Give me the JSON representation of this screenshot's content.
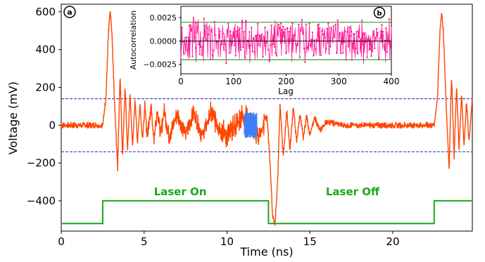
{
  "chart_data": [
    {
      "panel": "a",
      "type": "line",
      "xlabel": "Time (ns)",
      "ylabel": "Voltage (mV)",
      "xlim": [
        0,
        24.8
      ],
      "ylim": [
        -560,
        640
      ],
      "xticks": [
        0,
        5,
        10,
        15,
        20
      ],
      "yticks": [
        -400,
        -200,
        0,
        200,
        400,
        600
      ],
      "grid": false,
      "thresholds": [
        140,
        -140
      ],
      "annotations": [
        "Laser On",
        "Laser Off"
      ],
      "colors": {
        "signal": "#ff4500",
        "highlight": "#3f7ff5",
        "laser": "#1aa81a",
        "threshold": "#1f1fb4",
        "inset_series": "#ff1493",
        "inset_band": "#2ca02c"
      },
      "series": [
        {
          "kind": "signal",
          "x": [
            0,
            2.5,
            2.7,
            2.85,
            2.95,
            3.05,
            3.2,
            3.4,
            3.55,
            3.7,
            3.85,
            4.0,
            4.15,
            4.3,
            4.45,
            4.6,
            4.75,
            4.9,
            5.05,
            5.2,
            5.4,
            5.6,
            5.8,
            6.0,
            6.2,
            6.5,
            7.0,
            7.5,
            8.0,
            8.5,
            9.0,
            10.0,
            11.0,
            12.0,
            12.4,
            12.6,
            12.75,
            12.9,
            13.05,
            13.2,
            13.4,
            13.6,
            13.8,
            14.0,
            14.2,
            14.4,
            14.6,
            14.8,
            15.0,
            15.3,
            15.6,
            16.0,
            17.0,
            19.0,
            22.0,
            22.5,
            22.7,
            22.85,
            22.95,
            23.05,
            23.2,
            23.4,
            23.55,
            23.7,
            23.85,
            24.0,
            24.15,
            24.3,
            24.45,
            24.6,
            24.8
          ],
          "y": [
            0,
            0,
            150,
            500,
            600,
            500,
            150,
            -230,
            270,
            -170,
            210,
            -130,
            170,
            -110,
            130,
            -90,
            110,
            -80,
            100,
            -70,
            100,
            -70,
            90,
            -60,
            80,
            -60,
            60,
            -50,
            70,
            -60,
            60,
            -60,
            60,
            -60,
            60,
            -200,
            -480,
            -520,
            -300,
            110,
            -170,
            80,
            -130,
            100,
            -90,
            60,
            -70,
            50,
            -50,
            40,
            -30,
            20,
            0,
            0,
            0,
            0,
            150,
            500,
            600,
            500,
            150,
            -230,
            270,
            -170,
            210,
            -130,
            170,
            -110,
            130,
            -90,
            140
          ]
        },
        {
          "kind": "highlight",
          "x": [
            11.05,
            11.8
          ],
          "y": [
            -70,
            70
          ]
        },
        {
          "kind": "laser",
          "x": [
            0,
            2.5,
            2.5,
            12.5,
            12.5,
            22.5,
            22.5,
            24.8
          ],
          "y": [
            -520,
            -520,
            -400,
            -400,
            -520,
            -520,
            -400,
            -400
          ]
        }
      ]
    },
    {
      "panel": "b",
      "type": "scatter",
      "xlabel": "Lag",
      "ylabel": "Autocorrelation",
      "xlim": [
        0,
        400
      ],
      "ylim": [
        -0.0035,
        0.0037
      ],
      "xticks": [
        0,
        100,
        200,
        300,
        400
      ],
      "yticks": [
        -0.0025,
        0.0,
        0.0025
      ],
      "xtick_labels": [
        "0",
        "100",
        "200",
        "300",
        "400"
      ],
      "ytick_labels": [
        "−0.0025",
        "0.0000",
        "0.0025"
      ],
      "confidence_band": [
        0.002,
        -0.002
      ],
      "lag_count": 400,
      "amplitude": 0.0027
    }
  ]
}
